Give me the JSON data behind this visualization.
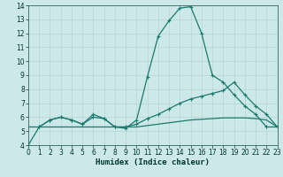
{
  "xlabel": "Humidex (Indice chaleur)",
  "ylabel": "",
  "bg_color": "#cce8e8",
  "grid_color": "#b8d8d8",
  "line_color": "#1a7a6e",
  "xmin": 0,
  "xmax": 23,
  "ymin": 4,
  "ymax": 14,
  "line1_x": [
    0,
    1,
    2,
    3,
    4,
    5,
    6,
    7,
    8,
    9,
    10,
    11,
    12,
    13,
    14,
    15,
    16,
    17,
    18,
    19,
    20,
    21,
    22,
    23
  ],
  "line1_y": [
    4.0,
    5.3,
    5.8,
    6.0,
    5.8,
    5.5,
    6.2,
    5.9,
    5.3,
    5.2,
    5.8,
    8.9,
    11.8,
    12.9,
    13.8,
    13.9,
    12.0,
    9.0,
    8.5,
    7.6,
    6.8,
    6.2,
    5.3,
    5.3
  ],
  "line2_x": [
    1,
    2,
    3,
    4,
    5,
    6,
    7,
    8,
    9,
    10,
    11,
    12,
    13,
    14,
    15,
    16,
    17,
    18,
    19,
    20,
    21,
    22,
    23
  ],
  "line2_y": [
    5.3,
    5.8,
    6.0,
    5.8,
    5.5,
    6.0,
    5.9,
    5.3,
    5.3,
    5.5,
    5.9,
    6.2,
    6.6,
    7.0,
    7.3,
    7.5,
    7.7,
    7.9,
    8.5,
    7.6,
    6.8,
    6.2,
    5.3
  ],
  "line3_x": [
    0,
    1,
    2,
    3,
    4,
    5,
    6,
    7,
    8,
    9,
    10,
    11,
    12,
    13,
    14,
    15,
    16,
    17,
    18,
    19,
    20,
    21,
    22,
    23
  ],
  "line3_y": [
    5.3,
    5.3,
    5.3,
    5.3,
    5.3,
    5.3,
    5.3,
    5.3,
    5.3,
    5.3,
    5.3,
    5.4,
    5.5,
    5.6,
    5.7,
    5.8,
    5.85,
    5.9,
    5.95,
    5.95,
    5.95,
    5.9,
    5.8,
    5.3
  ]
}
